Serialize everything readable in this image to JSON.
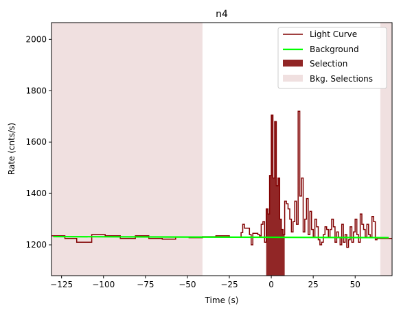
{
  "chart_data": {
    "type": "line",
    "title": "n4",
    "xlabel": "Time (s)",
    "ylabel": "Rate (cnts/s)",
    "xlim": [
      -131,
      72
    ],
    "ylim": [
      1080,
      2065
    ],
    "xticks": [
      -125,
      -100,
      -75,
      -50,
      -25,
      0,
      25,
      50
    ],
    "xtick_labels": [
      "−125",
      "−100",
      "−75",
      "−50",
      "−25",
      "0",
      "25",
      "50"
    ],
    "yticks": [
      1200,
      1400,
      1600,
      1800,
      2000
    ],
    "ytick_labels": [
      "1200",
      "1400",
      "1600",
      "1800",
      "2000"
    ],
    "grid": false,
    "legend_position": "top-right",
    "legend": [
      "Light Curve",
      "Background",
      "Selection",
      "Bkg. Selections"
    ],
    "colors": {
      "light_curve": "#800000",
      "background": "#00ff00",
      "selection": "#8b1a1a",
      "bkg_selection": "#f0e0e0"
    },
    "light_curve": {
      "x": [
        -131,
        -123,
        -116,
        -107,
        -99,
        -90,
        -81,
        -73,
        -65,
        -57,
        -49,
        -41,
        -33,
        -25,
        -18,
        -17,
        -16,
        -13,
        -12,
        -11,
        -8,
        -7,
        -6,
        -5,
        -4,
        -3,
        -2,
        -1,
        0,
        1,
        2,
        3,
        4,
        5,
        6,
        7,
        8,
        9,
        10,
        11,
        12,
        13,
        14,
        15,
        16,
        17,
        18,
        19,
        20,
        21,
        22,
        23,
        24,
        25,
        26,
        27,
        28,
        29,
        30,
        31,
        32,
        33,
        34,
        35,
        36,
        37,
        38,
        39,
        40,
        41,
        42,
        43,
        44,
        45,
        46,
        47,
        48,
        49,
        50,
        51,
        52,
        53,
        54,
        55,
        56,
        57,
        58,
        59,
        60,
        61,
        62,
        63,
        65,
        72
      ],
      "y": [
        1235,
        1225,
        1210,
        1240,
        1235,
        1225,
        1235,
        1225,
        1222,
        1230,
        1228,
        1232,
        1235,
        1230,
        1248,
        1280,
        1265,
        1240,
        1200,
        1245,
        1240,
        1235,
        1280,
        1290,
        1210,
        1340,
        1320,
        1470,
        1705,
        1460,
        1680,
        1430,
        1460,
        1300,
        1260,
        1240,
        1370,
        1360,
        1340,
        1300,
        1250,
        1290,
        1370,
        1280,
        1720,
        1390,
        1460,
        1250,
        1300,
        1380,
        1240,
        1330,
        1260,
        1230,
        1300,
        1270,
        1220,
        1200,
        1210,
        1240,
        1270,
        1260,
        1230,
        1260,
        1300,
        1270,
        1210,
        1250,
        1230,
        1200,
        1280,
        1210,
        1240,
        1190,
        1220,
        1270,
        1210,
        1250,
        1300,
        1240,
        1210,
        1320,
        1280,
        1260,
        1230,
        1280,
        1240,
        1230,
        1310,
        1290,
        1220,
        1225,
        1225,
        1225
      ]
    },
    "background": {
      "x": [
        -130,
        70
      ],
      "y": [
        1232,
        1228
      ]
    },
    "selections": [
      [
        -3,
        8
      ]
    ],
    "bkg_selections": [
      [
        -131,
        -41
      ],
      [
        65,
        72
      ]
    ]
  }
}
